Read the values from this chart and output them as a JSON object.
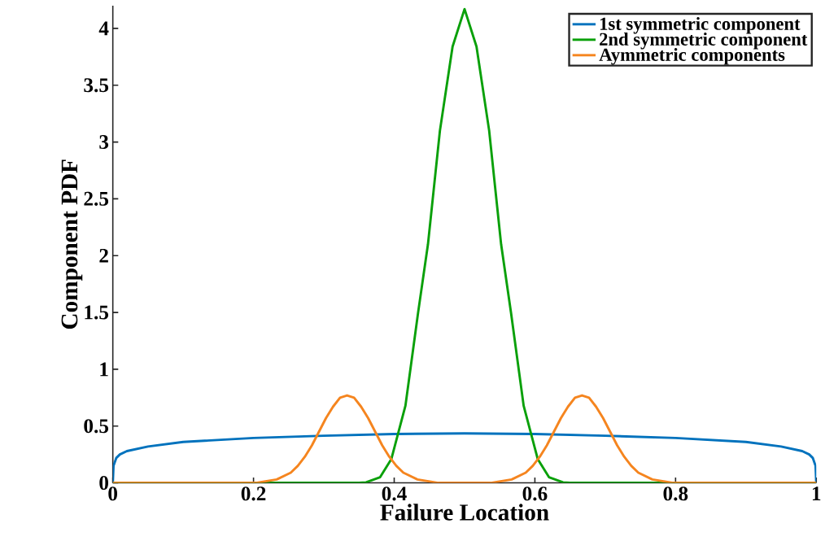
{
  "chart_data": {
    "type": "line",
    "xlabel": "Failure Location",
    "ylabel": "Component PDF",
    "xlim": [
      0,
      1
    ],
    "ylim": [
      0,
      4.2
    ],
    "xticks": [
      0,
      0.2,
      0.4,
      0.6,
      0.8,
      1
    ],
    "yticks": [
      0,
      0.5,
      1,
      1.5,
      2,
      2.5,
      3,
      3.5,
      4
    ],
    "legend": "top right",
    "grid": false,
    "marker": "none",
    "line_style": "solid",
    "series": [
      {
        "name": "1st symmetric component",
        "color": "#0072bd",
        "x": [
          0,
          0.001,
          0.005,
          0.01,
          0.02,
          0.05,
          0.1,
          0.2,
          0.3,
          0.4,
          0.5,
          0.6,
          0.7,
          0.8,
          0.9,
          0.95,
          0.98,
          0.99,
          0.995,
          0.999,
          1
        ],
        "values": [
          0,
          0.15,
          0.22,
          0.25,
          0.28,
          0.32,
          0.36,
          0.395,
          0.415,
          0.43,
          0.435,
          0.43,
          0.415,
          0.395,
          0.36,
          0.32,
          0.28,
          0.25,
          0.22,
          0.15,
          0
        ]
      },
      {
        "name": "2nd symmetric component",
        "color": "#0aa00a",
        "x": [
          0,
          0.35,
          0.36,
          0.38,
          0.396,
          0.416,
          0.434,
          0.448,
          0.465,
          0.483,
          0.5,
          0.517,
          0.535,
          0.552,
          0.566,
          0.584,
          0.604,
          0.62,
          0.64,
          0.65,
          1
        ],
        "values": [
          0,
          0,
          0.005,
          0.05,
          0.21,
          0.68,
          1.5,
          2.1,
          3.1,
          3.84,
          4.17,
          3.84,
          3.1,
          2.1,
          1.5,
          0.68,
          0.21,
          0.05,
          0.005,
          0,
          0
        ]
      },
      {
        "name": "Aymmetric components",
        "color": "#f5851f",
        "x": [
          0,
          0.203,
          0.233,
          0.253,
          0.263,
          0.273,
          0.283,
          0.293,
          0.303,
          0.313,
          0.323,
          0.333,
          0.343,
          0.353,
          0.363,
          0.373,
          0.383,
          0.393,
          0.403,
          0.413,
          0.433,
          0.463,
          0.537,
          0.567,
          0.587,
          0.597,
          0.607,
          0.617,
          0.627,
          0.637,
          0.647,
          0.657,
          0.667,
          0.677,
          0.687,
          0.697,
          0.707,
          0.717,
          0.727,
          0.737,
          0.747,
          0.767,
          0.797,
          1
        ],
        "values": [
          0,
          0,
          0.03,
          0.09,
          0.15,
          0.23,
          0.33,
          0.45,
          0.57,
          0.67,
          0.75,
          0.77,
          0.75,
          0.67,
          0.57,
          0.45,
          0.33,
          0.23,
          0.15,
          0.09,
          0.03,
          0,
          0,
          0.03,
          0.09,
          0.15,
          0.23,
          0.33,
          0.45,
          0.57,
          0.67,
          0.75,
          0.77,
          0.75,
          0.67,
          0.57,
          0.45,
          0.33,
          0.23,
          0.15,
          0.09,
          0.03,
          0,
          0
        ]
      }
    ]
  }
}
